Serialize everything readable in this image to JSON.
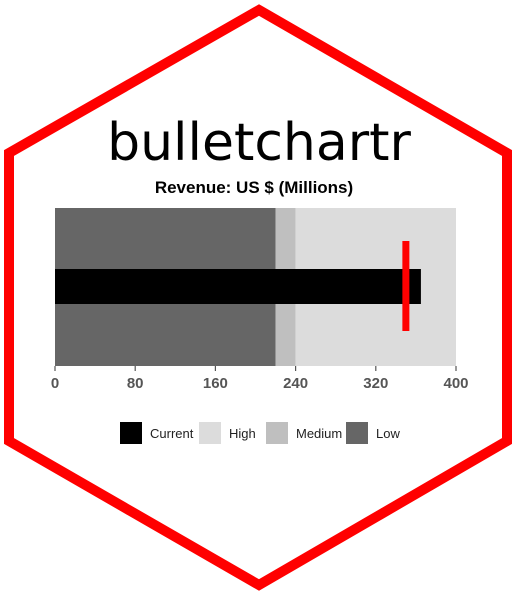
{
  "logo": {
    "package_name": "bulletchartr",
    "border_color": "#ff0000"
  },
  "chart_data": {
    "type": "bar",
    "subtype": "bullet",
    "title": "Revenue: US $ (Millions)",
    "xlim": [
      0,
      400
    ],
    "ticks": [
      0,
      80,
      160,
      240,
      320,
      400
    ],
    "tick_labels": [
      "0",
      "80",
      "160",
      "240",
      "320",
      "400"
    ],
    "ranges": [
      {
        "name": "Low",
        "from": 0,
        "to": 220,
        "color": "#666666"
      },
      {
        "name": "Medium",
        "from": 220,
        "to": 240,
        "color": "#bfbfbf"
      },
      {
        "name": "High",
        "from": 240,
        "to": 400,
        "color": "#dcdcdc"
      }
    ],
    "current": {
      "name": "Current",
      "value": 365,
      "color": "#000000"
    },
    "target": {
      "value": 350,
      "color": "#ff0000"
    },
    "legend": [
      {
        "label": "Current",
        "color": "#000000"
      },
      {
        "label": "High",
        "color": "#dcdcdc"
      },
      {
        "label": "Medium",
        "color": "#bfbfbf"
      },
      {
        "label": "Low",
        "color": "#666666"
      }
    ],
    "legend_position": "bottom",
    "grid": false
  }
}
